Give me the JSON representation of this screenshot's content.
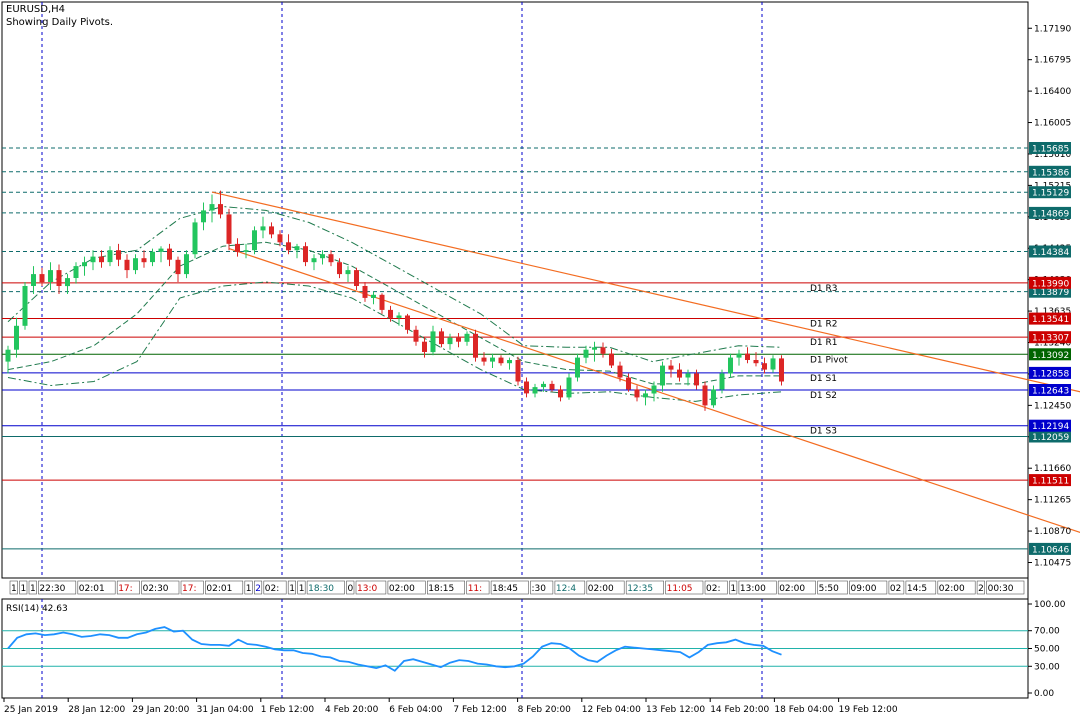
{
  "header": {
    "symbol": "EURUSD,H4",
    "indicator_note": "Showing Daily Pivots."
  },
  "colors": {
    "bull": "#22c55e",
    "bear": "#dc2626",
    "channel": "#f36c21",
    "grid": "#0000cc",
    "bands": "#1f7a4d",
    "rsi": "#1e90ff",
    "resistance": "#cc0000",
    "support": "#0000cc",
    "level": "#0e6b6b",
    "pivot": "#006400"
  },
  "chart_data": {
    "type": "candlestick",
    "symbol": "EURUSD",
    "timeframe": "H4",
    "y_range": [
      1.1028,
      1.1752
    ],
    "y_ticks": [
      "1.17190",
      "1.16795",
      "1.16400",
      "1.16005",
      "1.15610",
      "1.15215",
      "1.14820",
      "1.14425",
      "1.14030",
      "1.13635",
      "1.13240",
      "1.12845",
      "1.12450",
      "1.12055",
      "1.11660",
      "1.11265",
      "1.10870",
      "1.10475"
    ],
    "x_labels": [
      "25 Jan 2019",
      "28 Jan 12:00",
      "29 Jan 20:00",
      "31 Jan 04:00",
      "1 Feb 12:00",
      "4 Feb 20:00",
      "6 Feb 04:00",
      "7 Feb 12:00",
      "8 Feb 20:00",
      "12 Feb 04:00",
      "13 Feb 12:00",
      "14 Feb 20:00",
      "18 Feb 04:00",
      "19 Feb 12:00"
    ],
    "period_separators": [
      "28 Jan",
      "1 Feb",
      "8 Feb",
      "18 Feb"
    ],
    "candles": [
      {
        "o": 1.13,
        "h": 1.132,
        "l": 1.1285,
        "c": 1.1315
      },
      {
        "o": 1.1315,
        "h": 1.1355,
        "l": 1.1305,
        "c": 1.1345
      },
      {
        "o": 1.1345,
        "h": 1.14,
        "l": 1.134,
        "c": 1.1395
      },
      {
        "o": 1.1395,
        "h": 1.142,
        "l": 1.1385,
        "c": 1.141
      },
      {
        "o": 1.141,
        "h": 1.1418,
        "l": 1.1395,
        "c": 1.14
      },
      {
        "o": 1.14,
        "h": 1.1425,
        "l": 1.139,
        "c": 1.1415
      },
      {
        "o": 1.1415,
        "h": 1.1422,
        "l": 1.1385,
        "c": 1.1395
      },
      {
        "o": 1.1395,
        "h": 1.141,
        "l": 1.1385,
        "c": 1.1405
      },
      {
        "o": 1.1405,
        "h": 1.1425,
        "l": 1.1398,
        "c": 1.142
      },
      {
        "o": 1.142,
        "h": 1.1432,
        "l": 1.1408,
        "c": 1.1425
      },
      {
        "o": 1.1425,
        "h": 1.144,
        "l": 1.1415,
        "c": 1.1432
      },
      {
        "o": 1.1432,
        "h": 1.144,
        "l": 1.1418,
        "c": 1.1425
      },
      {
        "o": 1.1425,
        "h": 1.1445,
        "l": 1.142,
        "c": 1.144
      },
      {
        "o": 1.144,
        "h": 1.1448,
        "l": 1.142,
        "c": 1.1428
      },
      {
        "o": 1.1428,
        "h": 1.1435,
        "l": 1.1405,
        "c": 1.1415
      },
      {
        "o": 1.1415,
        "h": 1.1435,
        "l": 1.141,
        "c": 1.143
      },
      {
        "o": 1.143,
        "h": 1.144,
        "l": 1.1418,
        "c": 1.1425
      },
      {
        "o": 1.1425,
        "h": 1.1442,
        "l": 1.142,
        "c": 1.1438
      },
      {
        "o": 1.1438,
        "h": 1.1445,
        "l": 1.1425,
        "c": 1.1442
      },
      {
        "o": 1.1442,
        "h": 1.1448,
        "l": 1.142,
        "c": 1.1428
      },
      {
        "o": 1.1428,
        "h": 1.1432,
        "l": 1.14,
        "c": 1.141
      },
      {
        "o": 1.141,
        "h": 1.144,
        "l": 1.1405,
        "c": 1.1435
      },
      {
        "o": 1.1435,
        "h": 1.148,
        "l": 1.143,
        "c": 1.1475
      },
      {
        "o": 1.1475,
        "h": 1.15,
        "l": 1.1465,
        "c": 1.149
      },
      {
        "o": 1.149,
        "h": 1.151,
        "l": 1.1475,
        "c": 1.1498
      },
      {
        "o": 1.1498,
        "h": 1.1515,
        "l": 1.148,
        "c": 1.1485
      },
      {
        "o": 1.1485,
        "h": 1.1492,
        "l": 1.144,
        "c": 1.1448
      },
      {
        "o": 1.1448,
        "h": 1.1455,
        "l": 1.1432,
        "c": 1.1438
      },
      {
        "o": 1.1438,
        "h": 1.1448,
        "l": 1.143,
        "c": 1.144
      },
      {
        "o": 1.144,
        "h": 1.147,
        "l": 1.1435,
        "c": 1.1465
      },
      {
        "o": 1.1465,
        "h": 1.1482,
        "l": 1.1455,
        "c": 1.147
      },
      {
        "o": 1.147,
        "h": 1.1475,
        "l": 1.1455,
        "c": 1.146
      },
      {
        "o": 1.146,
        "h": 1.1465,
        "l": 1.1445,
        "c": 1.145
      },
      {
        "o": 1.145,
        "h": 1.146,
        "l": 1.1435,
        "c": 1.144
      },
      {
        "o": 1.144,
        "h": 1.1448,
        "l": 1.143,
        "c": 1.1445
      },
      {
        "o": 1.1445,
        "h": 1.145,
        "l": 1.142,
        "c": 1.1425
      },
      {
        "o": 1.1425,
        "h": 1.1435,
        "l": 1.1415,
        "c": 1.143
      },
      {
        "o": 1.143,
        "h": 1.144,
        "l": 1.1422,
        "c": 1.1435
      },
      {
        "o": 1.1435,
        "h": 1.144,
        "l": 1.142,
        "c": 1.1425
      },
      {
        "o": 1.1425,
        "h": 1.143,
        "l": 1.1405,
        "c": 1.141
      },
      {
        "o": 1.141,
        "h": 1.142,
        "l": 1.14,
        "c": 1.1415
      },
      {
        "o": 1.1415,
        "h": 1.1418,
        "l": 1.139,
        "c": 1.1395
      },
      {
        "o": 1.1395,
        "h": 1.14,
        "l": 1.1375,
        "c": 1.138
      },
      {
        "o": 1.138,
        "h": 1.1388,
        "l": 1.1372,
        "c": 1.1384
      },
      {
        "o": 1.1384,
        "h": 1.1386,
        "l": 1.136,
        "c": 1.1365
      },
      {
        "o": 1.1365,
        "h": 1.137,
        "l": 1.135,
        "c": 1.1355
      },
      {
        "o": 1.1355,
        "h": 1.1362,
        "l": 1.1345,
        "c": 1.1358
      },
      {
        "o": 1.1358,
        "h": 1.136,
        "l": 1.1335,
        "c": 1.134
      },
      {
        "o": 1.134,
        "h": 1.1345,
        "l": 1.132,
        "c": 1.1325
      },
      {
        "o": 1.1325,
        "h": 1.133,
        "l": 1.1305,
        "c": 1.1312
      },
      {
        "o": 1.1312,
        "h": 1.1345,
        "l": 1.1308,
        "c": 1.1338
      },
      {
        "o": 1.1338,
        "h": 1.1342,
        "l": 1.1318,
        "c": 1.1322
      },
      {
        "o": 1.1322,
        "h": 1.1335,
        "l": 1.1315,
        "c": 1.133
      },
      {
        "o": 1.133,
        "h": 1.1336,
        "l": 1.1318,
        "c": 1.1325
      },
      {
        "o": 1.1325,
        "h": 1.1338,
        "l": 1.132,
        "c": 1.1335
      },
      {
        "o": 1.1335,
        "h": 1.134,
        "l": 1.13,
        "c": 1.1305
      },
      {
        "o": 1.1305,
        "h": 1.1312,
        "l": 1.1295,
        "c": 1.13
      },
      {
        "o": 1.13,
        "h": 1.131,
        "l": 1.1292,
        "c": 1.1305
      },
      {
        "o": 1.1305,
        "h": 1.1308,
        "l": 1.1295,
        "c": 1.1298
      },
      {
        "o": 1.1298,
        "h": 1.1305,
        "l": 1.129,
        "c": 1.1302
      },
      {
        "o": 1.1302,
        "h": 1.1306,
        "l": 1.127,
        "c": 1.1275
      },
      {
        "o": 1.1275,
        "h": 1.128,
        "l": 1.1255,
        "c": 1.126
      },
      {
        "o": 1.126,
        "h": 1.1272,
        "l": 1.1255,
        "c": 1.1268
      },
      {
        "o": 1.1268,
        "h": 1.1275,
        "l": 1.1262,
        "c": 1.1272
      },
      {
        "o": 1.1272,
        "h": 1.1276,
        "l": 1.1262,
        "c": 1.1265
      },
      {
        "o": 1.1265,
        "h": 1.127,
        "l": 1.125,
        "c": 1.1255
      },
      {
        "o": 1.1255,
        "h": 1.1285,
        "l": 1.1252,
        "c": 1.128
      },
      {
        "o": 1.128,
        "h": 1.131,
        "l": 1.1275,
        "c": 1.1305
      },
      {
        "o": 1.1305,
        "h": 1.132,
        "l": 1.1298,
        "c": 1.1315
      },
      {
        "o": 1.1315,
        "h": 1.1325,
        "l": 1.13,
        "c": 1.1318
      },
      {
        "o": 1.1318,
        "h": 1.1324,
        "l": 1.1305,
        "c": 1.131
      },
      {
        "o": 1.131,
        "h": 1.1316,
        "l": 1.1292,
        "c": 1.1295
      },
      {
        "o": 1.1295,
        "h": 1.13,
        "l": 1.1275,
        "c": 1.128
      },
      {
        "o": 1.128,
        "h": 1.1285,
        "l": 1.1262,
        "c": 1.1265
      },
      {
        "o": 1.1265,
        "h": 1.127,
        "l": 1.125,
        "c": 1.1255
      },
      {
        "o": 1.1255,
        "h": 1.1265,
        "l": 1.1245,
        "c": 1.126
      },
      {
        "o": 1.126,
        "h": 1.1275,
        "l": 1.125,
        "c": 1.127
      },
      {
        "o": 1.127,
        "h": 1.13,
        "l": 1.1262,
        "c": 1.1295
      },
      {
        "o": 1.1295,
        "h": 1.1302,
        "l": 1.128,
        "c": 1.129
      },
      {
        "o": 1.129,
        "h": 1.1298,
        "l": 1.1275,
        "c": 1.128
      },
      {
        "o": 1.128,
        "h": 1.129,
        "l": 1.127,
        "c": 1.1285
      },
      {
        "o": 1.1285,
        "h": 1.129,
        "l": 1.1265,
        "c": 1.127
      },
      {
        "o": 1.127,
        "h": 1.1275,
        "l": 1.1238,
        "c": 1.1245
      },
      {
        "o": 1.1245,
        "h": 1.127,
        "l": 1.1242,
        "c": 1.1265
      },
      {
        "o": 1.1265,
        "h": 1.129,
        "l": 1.126,
        "c": 1.1285
      },
      {
        "o": 1.1285,
        "h": 1.131,
        "l": 1.128,
        "c": 1.1305
      },
      {
        "o": 1.1305,
        "h": 1.1315,
        "l": 1.1295,
        "c": 1.131
      },
      {
        "o": 1.131,
        "h": 1.1318,
        "l": 1.1298,
        "c": 1.1302
      },
      {
        "o": 1.1302,
        "h": 1.1312,
        "l": 1.1294,
        "c": 1.1298
      },
      {
        "o": 1.1298,
        "h": 1.1305,
        "l": 1.1285,
        "c": 1.129
      },
      {
        "o": 1.129,
        "h": 1.1308,
        "l": 1.1286,
        "c": 1.1304
      },
      {
        "o": 1.1304,
        "h": 1.1308,
        "l": 1.127,
        "c": 1.1275
      }
    ],
    "channel_lines": [
      {
        "name": "upper trendline",
        "from": {
          "bar": 24,
          "price": 1.1513
        },
        "to": {
          "bar": 129,
          "price": 1.1255
        }
      },
      {
        "name": "lower trendline",
        "from": {
          "bar": 26,
          "price": 1.1442
        },
        "to": {
          "bar": 129,
          "price": 1.1075
        }
      }
    ],
    "bands": {
      "upper": [
        1.135,
        1.14,
        1.143,
        1.144,
        1.148,
        1.1495,
        1.149,
        1.1475,
        1.145,
        1.142,
        1.139,
        1.136,
        1.132,
        1.1318,
        1.1318,
        1.13,
        1.131,
        1.132,
        1.1318
      ],
      "middle": [
        1.129,
        1.13,
        1.132,
        1.136,
        1.142,
        1.1445,
        1.145,
        1.144,
        1.142,
        1.139,
        1.136,
        1.133,
        1.13,
        1.129,
        1.1288,
        1.1272,
        1.1272,
        1.1282,
        1.1282
      ],
      "lower": [
        1.128,
        1.127,
        1.1275,
        1.13,
        1.138,
        1.1395,
        1.14,
        1.1395,
        1.138,
        1.135,
        1.132,
        1.129,
        1.1265,
        1.126,
        1.1262,
        1.1255,
        1.125,
        1.1258,
        1.1262
      ]
    },
    "pivot_levels": [
      {
        "label": "D1 R3",
        "value": 1.1399,
        "tag": "1.13990",
        "kind": "resistance"
      },
      {
        "label": "D1 R2",
        "value": 1.13541,
        "tag": "1.13541",
        "kind": "resistance"
      },
      {
        "label": "D1 R1",
        "value": 1.13307,
        "tag": "1.13307",
        "kind": "resistance"
      },
      {
        "label": "D1 Pivot",
        "value": 1.13092,
        "tag": "1.13092",
        "kind": "pivot"
      },
      {
        "label": "D1 S1",
        "value": 1.12858,
        "tag": "1.12858",
        "kind": "support"
      },
      {
        "label": "D1 S2",
        "value": 1.12643,
        "tag": "1.12643",
        "kind": "support"
      },
      {
        "label": "D1 S3",
        "value": 1.12194,
        "tag": "1.12194",
        "kind": "support"
      }
    ],
    "price_levels": [
      {
        "value": 1.15685,
        "tag": "1.15685",
        "style": "dashed"
      },
      {
        "value": 1.15386,
        "tag": "1.15386",
        "style": "dashed"
      },
      {
        "value": 1.15129,
        "tag": "1.15129",
        "style": "dashed"
      },
      {
        "value": 1.14869,
        "tag": "1.14869",
        "style": "dashed"
      },
      {
        "value": 1.14384,
        "tag": "1.14384",
        "style": "dashed"
      },
      {
        "value": 1.13879,
        "tag": "1.13879",
        "style": "dashed"
      },
      {
        "value": 1.12059,
        "tag": "1.12059",
        "style": "solid"
      },
      {
        "value": 1.11511,
        "tag": "1.11511",
        "style": "solid-red"
      },
      {
        "value": 1.10646,
        "tag": "1.10646",
        "style": "solid"
      }
    ],
    "rsi": {
      "label": "RSI(14) 42.63",
      "period": 14,
      "last": 42.63,
      "y_range": [
        0,
        100
      ],
      "y_ticks": [
        "100.00",
        "70.00",
        "50.00",
        "30.00",
        "0.00"
      ],
      "levels": [
        70,
        50,
        30
      ],
      "values": [
        50,
        62,
        66,
        67,
        65,
        66,
        68,
        66,
        63,
        64,
        66,
        65,
        62,
        62,
        66,
        68,
        72,
        74,
        69,
        70,
        60,
        55,
        54,
        54,
        53,
        60,
        55,
        54,
        52,
        49,
        48,
        48,
        45,
        44,
        41,
        40,
        36,
        35,
        32,
        30,
        28,
        31,
        25,
        36,
        38,
        35,
        32,
        29,
        34,
        37,
        36,
        33,
        32,
        30,
        29,
        30,
        33,
        41,
        52,
        56,
        55,
        50,
        42,
        37,
        35,
        42,
        48,
        52,
        51,
        50,
        49,
        48,
        47,
        46,
        40,
        46,
        54,
        56,
        57,
        60,
        56,
        54,
        53,
        47,
        43
      ]
    }
  },
  "time_boxes": [
    {
      "text": "1",
      "color": "#000000"
    },
    {
      "text": "1",
      "color": "#000000"
    },
    {
      "text": "1",
      "color": "#000000"
    },
    {
      "text": "22:30",
      "color": "#000000"
    },
    {
      "text": "02:01",
      "color": "#000000"
    },
    {
      "text": "17:",
      "color": "#cc0000"
    },
    {
      "text": "02:30",
      "color": "#000000"
    },
    {
      "text": "17:",
      "color": "#cc0000"
    },
    {
      "text": "02:01",
      "color": "#000000"
    },
    {
      "text": "1",
      "color": "#000000"
    },
    {
      "text": "2",
      "color": "#0000cc"
    },
    {
      "text": "02:",
      "color": "#000000"
    },
    {
      "text": "1",
      "color": "#000000"
    },
    {
      "text": "1",
      "color": "#000000"
    },
    {
      "text": "18:30",
      "color": "#0e6b6b"
    },
    {
      "text": "0",
      "color": "#000000"
    },
    {
      "text": "13:0",
      "color": "#cc0000"
    },
    {
      "text": "02:00",
      "color": "#000000"
    },
    {
      "text": "18:15",
      "color": "#000000"
    },
    {
      "text": "11:",
      "color": "#cc0000"
    },
    {
      "text": "18:45",
      "color": "#000000"
    },
    {
      "text": ":30",
      "color": "#000000"
    },
    {
      "text": "12:4",
      "color": "#0e6b6b"
    },
    {
      "text": "02:00",
      "color": "#000000"
    },
    {
      "text": "12:35",
      "color": "#0e6b6b"
    },
    {
      "text": "11:05",
      "color": "#cc0000"
    },
    {
      "text": "02:",
      "color": "#000000"
    },
    {
      "text": "1",
      "color": "#000000"
    },
    {
      "text": "13:00",
      "color": "#000000"
    },
    {
      "text": "02:00",
      "color": "#000000"
    },
    {
      "text": "5:50",
      "color": "#000000"
    },
    {
      "text": "09:00",
      "color": "#000000"
    },
    {
      "text": "02",
      "color": "#000000"
    },
    {
      "text": "14:5",
      "color": "#000000"
    },
    {
      "text": "02:00",
      "color": "#000000"
    },
    {
      "text": "2",
      "color": "#000000"
    },
    {
      "text": "00:30",
      "color": "#000000"
    }
  ]
}
